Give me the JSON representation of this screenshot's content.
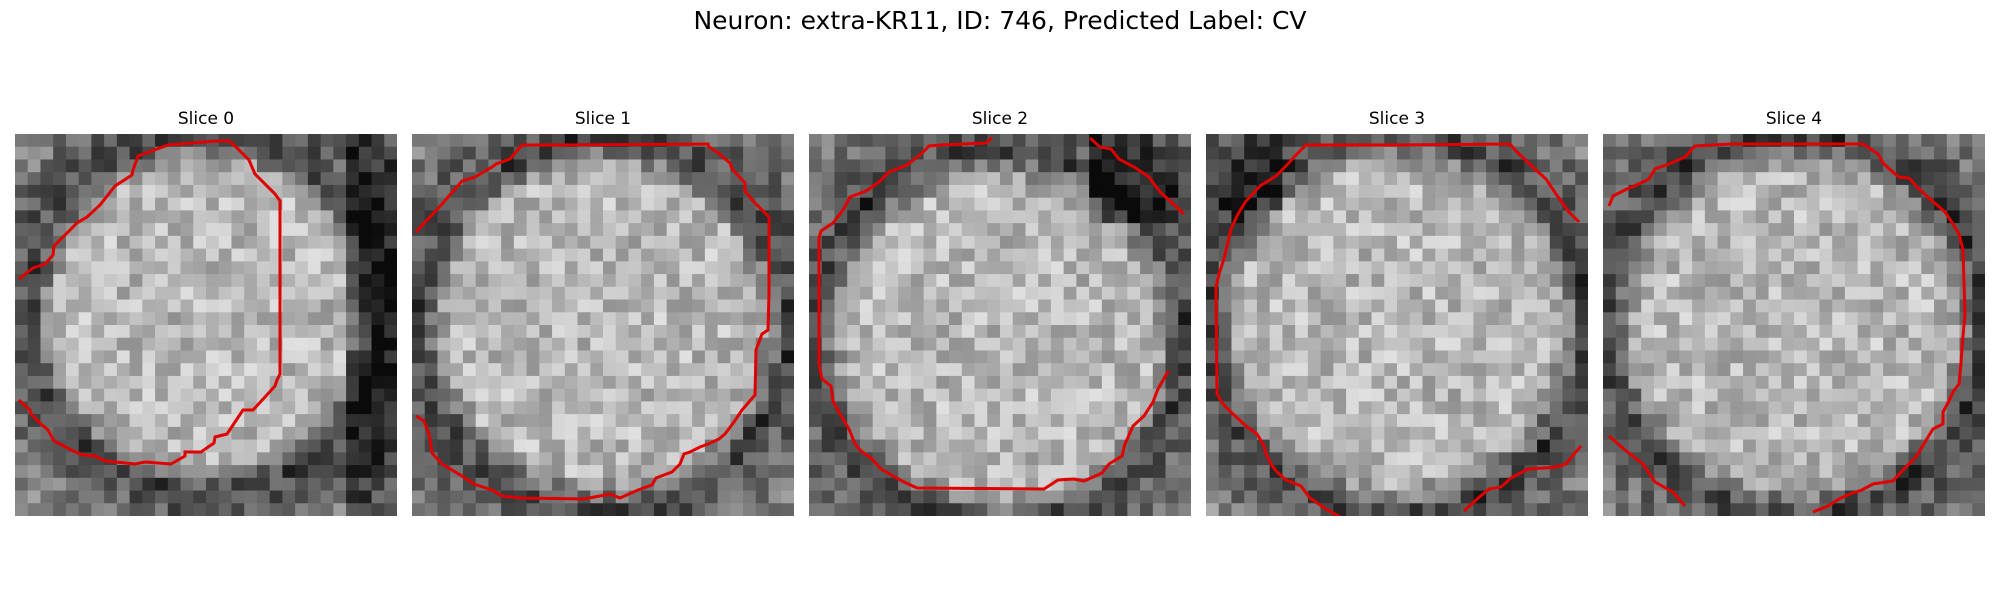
{
  "figure": {
    "title": "Neuron: extra-KR11, ID: 746, Predicted Label: CV"
  },
  "panels": [
    {
      "title": "Slice 0",
      "seed": 11,
      "center": [
        0.5,
        0.47
      ],
      "radius": 0.45,
      "dark_side": "right"
    },
    {
      "title": "Slice 1",
      "seed": 23,
      "center": [
        0.5,
        0.5
      ],
      "radius": 0.47,
      "dark_side": "corners"
    },
    {
      "title": "Slice 2",
      "seed": 37,
      "center": [
        0.5,
        0.53
      ],
      "radius": 0.47,
      "dark_side": "top-right"
    },
    {
      "title": "Slice 3",
      "seed": 41,
      "center": [
        0.5,
        0.5
      ],
      "radius": 0.48,
      "dark_side": "top-left"
    },
    {
      "title": "Slice 4",
      "seed": 59,
      "center": [
        0.5,
        0.5
      ],
      "radius": 0.48,
      "dark_side": "edges"
    }
  ],
  "style": {
    "contour_color": "#e00000",
    "cmap": "gray"
  }
}
